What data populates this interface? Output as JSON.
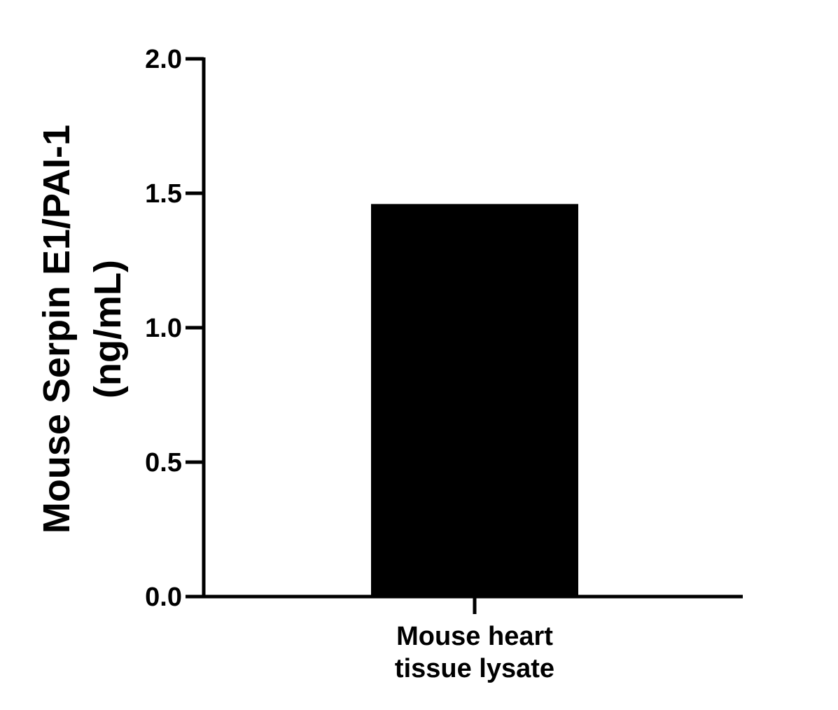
{
  "chart_data": {
    "type": "bar",
    "title": "",
    "xlabel": "",
    "ylabel_lines": [
      "Mouse Serpin E1/PAI-1",
      "(ng/mL)"
    ],
    "categories": [
      [
        "Mouse heart",
        "tissue lysate"
      ]
    ],
    "values": [
      1.46
    ],
    "ylim": [
      0,
      2.0
    ],
    "yticks": [
      "0.0",
      "0.5",
      "1.0",
      "1.5",
      "2.0"
    ],
    "grid": false,
    "legend": "none",
    "bar_color": "#000000",
    "axis_color": "#000000"
  }
}
